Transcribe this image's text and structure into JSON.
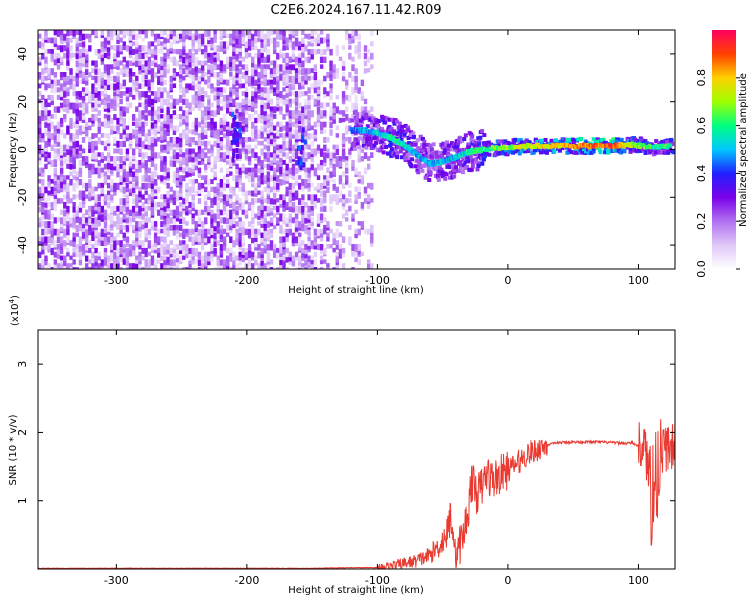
{
  "figure_title": "C2E6.2024.167.11.42.R09",
  "chart_data": [
    {
      "type": "heatmap",
      "name": "spectrogram",
      "xlabel": "Height of straight line (km)",
      "ylabel": "Frequency (Hz)",
      "xlim": [
        -360,
        128
      ],
      "ylim": [
        -50,
        50
      ],
      "xticks": [
        -300,
        -200,
        -100,
        0,
        100
      ],
      "yticks": [
        -40,
        -20,
        0,
        20,
        40
      ],
      "colorbar": {
        "label": "Normalized spectral amplitude",
        "range": [
          0,
          1
        ],
        "ticks": [
          "0.0",
          "0.2",
          "0.4",
          "0.6",
          "0.8"
        ],
        "colors": [
          "#ffffff",
          "#e0c8f8",
          "#b070f0",
          "#7a00e8",
          "#2020ff",
          "#00c8ff",
          "#00ff80",
          "#a0ff00",
          "#ffd000",
          "#ff4000",
          "#ff0060"
        ]
      },
      "noise_region_x": [
        -360,
        -105
      ],
      "ridge": [
        {
          "x": -120,
          "y": 8,
          "amp": 0.4
        },
        {
          "x": -110,
          "y": 8,
          "amp": 0.5
        },
        {
          "x": -100,
          "y": 7,
          "amp": 0.5
        },
        {
          "x": -90,
          "y": 5,
          "amp": 0.6
        },
        {
          "x": -80,
          "y": 2,
          "amp": 0.55
        },
        {
          "x": -70,
          "y": -2,
          "amp": 0.5
        },
        {
          "x": -60,
          "y": -6,
          "amp": 0.45
        },
        {
          "x": -50,
          "y": -5,
          "amp": 0.5
        },
        {
          "x": -40,
          "y": -3,
          "amp": 0.5
        },
        {
          "x": -30,
          "y": -1,
          "amp": 0.55
        },
        {
          "x": -20,
          "y": 0,
          "amp": 0.6
        },
        {
          "x": 0,
          "y": 1,
          "amp": 0.7
        },
        {
          "x": 20,
          "y": 1.5,
          "amp": 0.75
        },
        {
          "x": 40,
          "y": 1.5,
          "amp": 0.8
        },
        {
          "x": 60,
          "y": 1.5,
          "amp": 0.85
        },
        {
          "x": 80,
          "y": 1.5,
          "amp": 0.9
        },
        {
          "x": 95,
          "y": 2,
          "amp": 0.7
        },
        {
          "x": 110,
          "y": 1,
          "amp": 0.6
        },
        {
          "x": 125,
          "y": 1.5,
          "amp": 0.6
        }
      ]
    },
    {
      "type": "line",
      "name": "snr",
      "xlabel": "Height of straight line (km)",
      "ylabel": "SNR (10 * v/v)",
      "exponent_label": "(x10",
      "exponent_value": "4",
      "exponent_close": ")",
      "xlim": [
        -360,
        128
      ],
      "ylim": [
        0,
        3.5
      ],
      "xticks": [
        -300,
        -200,
        -100,
        0,
        100
      ],
      "yticks": [
        1,
        2,
        3
      ],
      "color": "#e83a30",
      "series": [
        {
          "points": [
            [
              -360,
              0.01
            ],
            [
              -300,
              0.01
            ],
            [
              -250,
              0.01
            ],
            [
              -200,
              0.01
            ],
            [
              -150,
              0.01
            ],
            [
              -120,
              0.02
            ],
            [
              -100,
              0.02
            ],
            [
              -90,
              0.04
            ],
            [
              -80,
              0.08
            ],
            [
              -70,
              0.12
            ],
            [
              -60,
              0.2
            ],
            [
              -52,
              0.35
            ],
            [
              -46,
              0.55
            ],
            [
              -44,
              0.8
            ],
            [
              -42,
              0.6
            ],
            [
              -40,
              0.2
            ],
            [
              -38,
              0.3
            ],
            [
              -34,
              0.5
            ],
            [
              -30,
              0.9
            ],
            [
              -28,
              1.3
            ],
            [
              -24,
              1.1
            ],
            [
              -20,
              1.2
            ],
            [
              -16,
              1.4
            ],
            [
              -12,
              1.3
            ],
            [
              -8,
              1.35
            ],
            [
              -4,
              1.4
            ],
            [
              0,
              1.45
            ],
            [
              4,
              1.5
            ],
            [
              10,
              1.6
            ],
            [
              16,
              1.7
            ],
            [
              20,
              1.72
            ],
            [
              25,
              1.78
            ],
            [
              30,
              1.82
            ],
            [
              40,
              1.85
            ],
            [
              50,
              1.86
            ],
            [
              60,
              1.86
            ],
            [
              70,
              1.86
            ],
            [
              80,
              1.85
            ],
            [
              90,
              1.84
            ],
            [
              95,
              1.85
            ],
            [
              100,
              1.8
            ],
            [
              104,
              1.85
            ],
            [
              108,
              1.4
            ],
            [
              110,
              1.1
            ],
            [
              112,
              1.2
            ],
            [
              115,
              1.5
            ],
            [
              118,
              1.75
            ],
            [
              122,
              1.78
            ],
            [
              128,
              1.78
            ]
          ]
        }
      ]
    }
  ]
}
